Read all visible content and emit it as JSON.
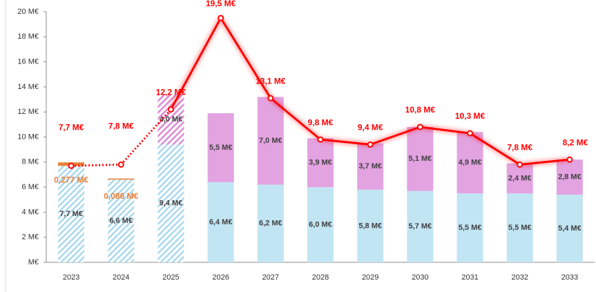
{
  "chart_data": {
    "type": "bar",
    "categories": [
      "2023",
      "2024",
      "2025",
      "2026",
      "2027",
      "2028",
      "2029",
      "2030",
      "2031",
      "2032",
      "2033"
    ],
    "ylim": [
      0,
      20
    ],
    "yticks": [
      {
        "value": 0,
        "label": "M€"
      },
      {
        "value": 2,
        "label": "2 M€"
      },
      {
        "value": 4,
        "label": "4 M€"
      },
      {
        "value": 6,
        "label": "6 M€"
      },
      {
        "value": 8,
        "label": "8 M€"
      },
      {
        "value": 10,
        "label": "10 M€"
      },
      {
        "value": 12,
        "label": "12 M€"
      },
      {
        "value": 14,
        "label": "14 M€"
      },
      {
        "value": 16,
        "label": "16 M€"
      },
      {
        "value": 18,
        "label": "18 M€"
      },
      {
        "value": 20,
        "label": "20 M€"
      }
    ],
    "series": [
      {
        "type": "bar",
        "color": "#c2e5f4",
        "values": [
          7.7,
          6.6,
          9.4,
          6.4,
          6.2,
          6.0,
          5.8,
          5.7,
          5.5,
          5.5,
          5.4
        ],
        "value_labels": [
          "7,7 M€",
          "6,6 M€",
          "9,4 M€",
          "6,4 M€",
          "6,2 M€",
          "6,0 M€",
          "5,8 M€",
          "5,7 M€",
          "5,5 M€",
          "5,5 M€",
          "5,4 M€"
        ]
      },
      {
        "type": "bar",
        "color": "#e3a3e1",
        "values": [
          null,
          null,
          4.0,
          5.5,
          7.0,
          3.9,
          3.7,
          5.1,
          4.9,
          2.4,
          2.8
        ],
        "value_labels": [
          null,
          null,
          "4,0 M€",
          "5,5 M€",
          "7,0 M€",
          "3,9 M€",
          "3,7 M€",
          "5,1 M€",
          "4,9 M€",
          "2,4 M€",
          "2,8 M€"
        ]
      },
      {
        "type": "bar",
        "color": "#e8803a",
        "values": [
          0.277,
          0.086,
          null,
          null,
          null,
          null,
          null,
          null,
          null,
          null,
          null
        ],
        "value_labels": [
          "0,277 M€",
          "0,086 M€",
          null,
          null,
          null,
          null,
          null,
          null,
          null,
          null,
          null
        ]
      },
      {
        "type": "line",
        "color": "#ff0000",
        "values": [
          7.7,
          7.8,
          12.2,
          19.5,
          13.1,
          9.8,
          9.4,
          10.8,
          10.3,
          7.8,
          8.2
        ],
        "value_labels": [
          "7,7 M€",
          "7,8 M€",
          "12,2 M€",
          "19,5 M€",
          "13,1 M€",
          "9,8 M€",
          "9,4 M€",
          "10,8 M€",
          "10,3 M€",
          "7,8 M€",
          "8,2 M€"
        ]
      }
    ]
  }
}
